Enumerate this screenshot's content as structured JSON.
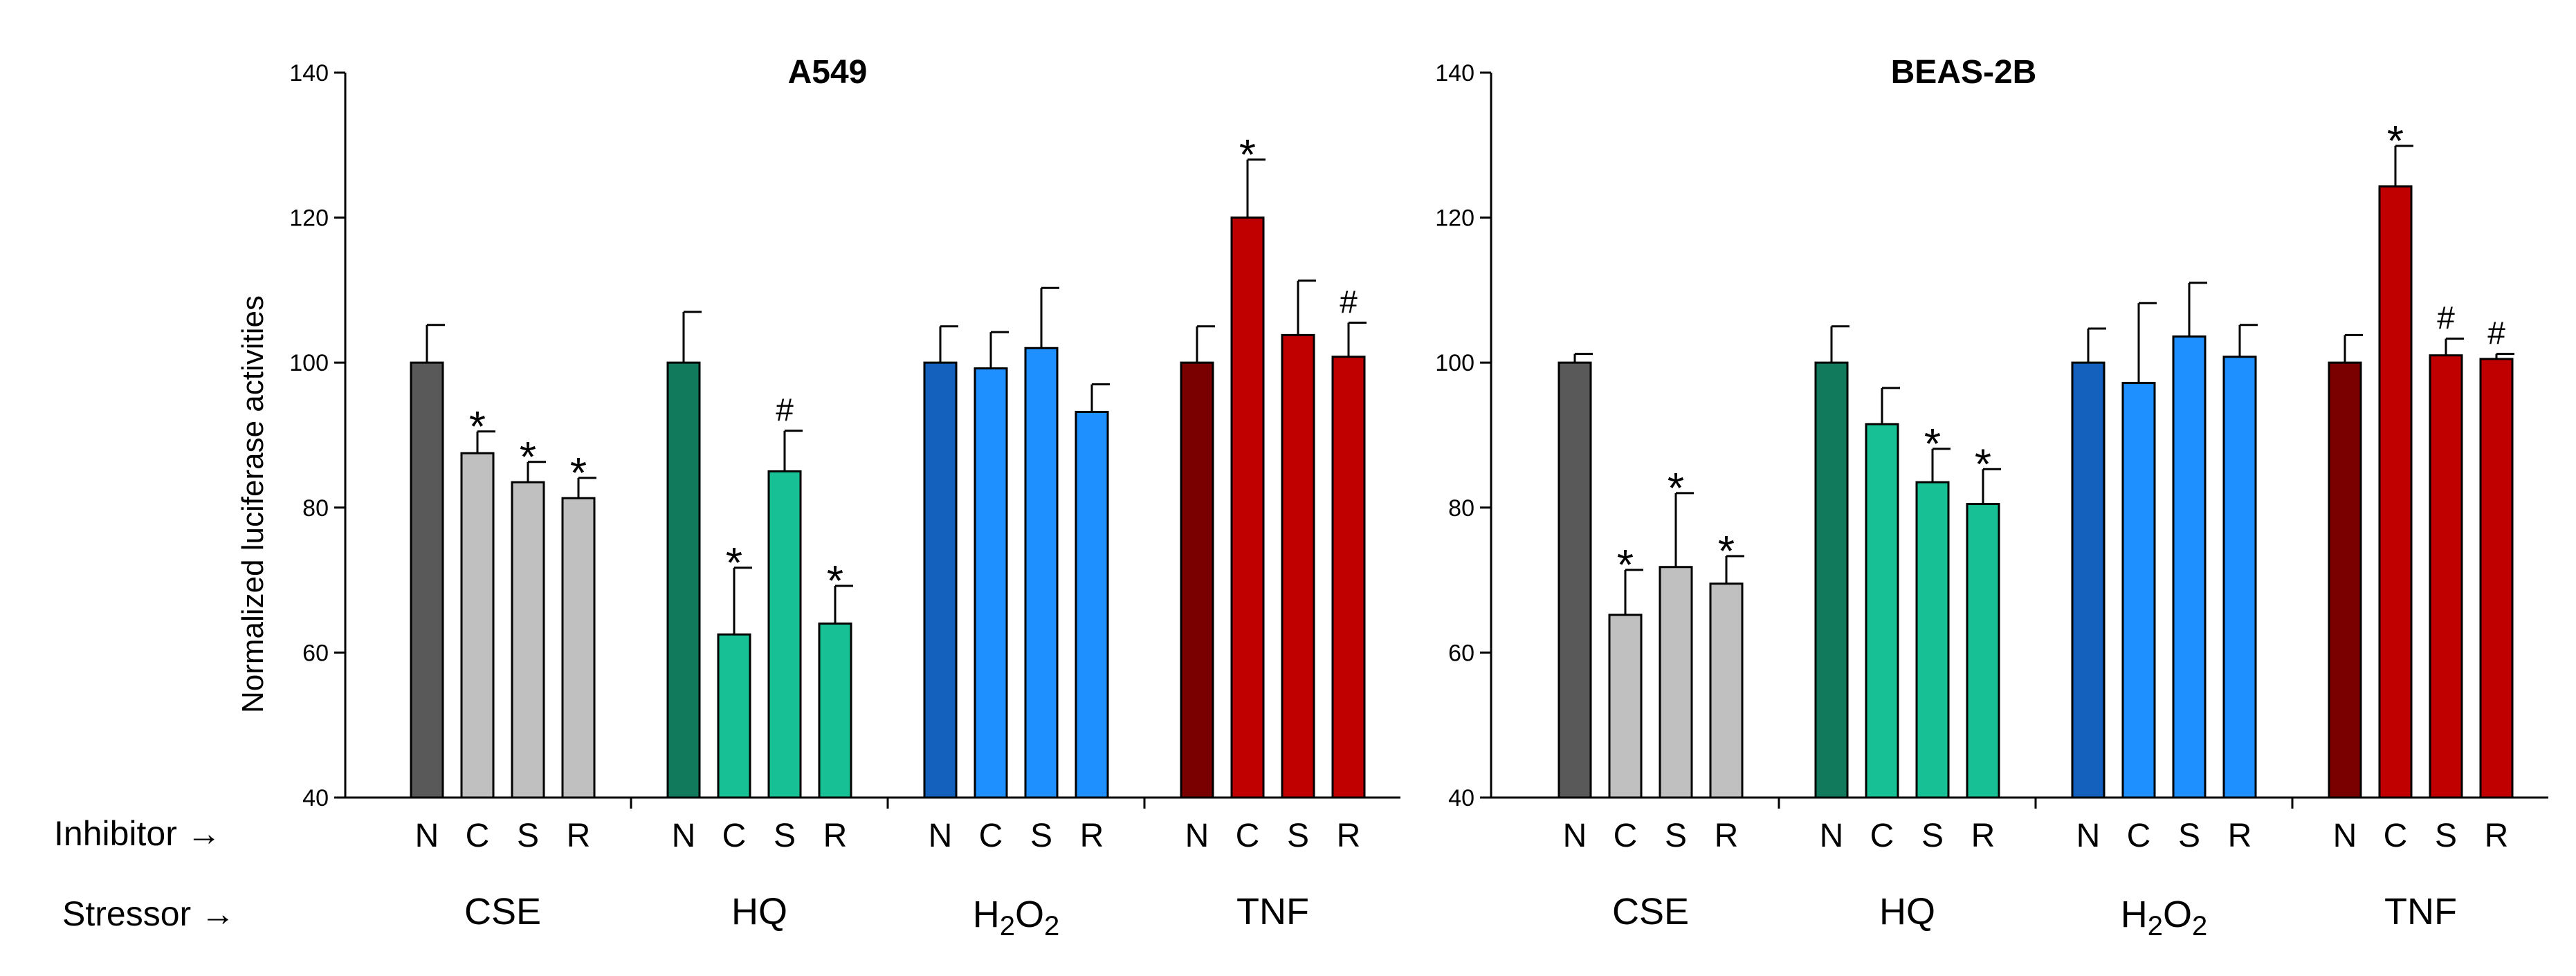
{
  "row_labels": {
    "inhibitor": "Inhibitor →",
    "stressor": "Stressor →"
  },
  "chart_data": [
    {
      "type": "bar",
      "title": "A549",
      "ylabel": "Normalized luciferase activities",
      "xlabel": "",
      "ylim": [
        40,
        140
      ],
      "yticks": [
        40,
        60,
        80,
        100,
        120,
        140
      ],
      "grid": false,
      "groups": [
        {
          "stressor": "CSE",
          "bars": [
            {
              "inhibitor": "N",
              "value": 100.0,
              "error": 5.2,
              "mark": "",
              "color": "#595959"
            },
            {
              "inhibitor": "C",
              "value": 87.5,
              "error": 3.0,
              "mark": "*",
              "color": "#c0c0c0"
            },
            {
              "inhibitor": "S",
              "value": 83.5,
              "error": 2.8,
              "mark": "*",
              "color": "#c0c0c0"
            },
            {
              "inhibitor": "R",
              "value": 81.3,
              "error": 2.8,
              "mark": "*",
              "color": "#c0c0c0"
            }
          ]
        },
        {
          "stressor": "HQ",
          "bars": [
            {
              "inhibitor": "N",
              "value": 100.0,
              "error": 7.0,
              "mark": "",
              "color": "#127a5c"
            },
            {
              "inhibitor": "C",
              "value": 62.5,
              "error": 9.2,
              "mark": "*",
              "color": "#17c195"
            },
            {
              "inhibitor": "S",
              "value": 85.0,
              "error": 5.6,
              "mark": "#",
              "color": "#17c195"
            },
            {
              "inhibitor": "R",
              "value": 64.0,
              "error": 5.2,
              "mark": "*",
              "color": "#17c195"
            }
          ]
        },
        {
          "stressor": "H2O2",
          "stressor_base": "H",
          "stressor_sub1": "2",
          "stressor_mid": "O",
          "stressor_sub2": "2",
          "bars": [
            {
              "inhibitor": "N",
              "value": 100.0,
              "error": 5.0,
              "mark": "",
              "color": "#1361bd"
            },
            {
              "inhibitor": "C",
              "value": 99.2,
              "error": 5.0,
              "mark": "",
              "color": "#1e90ff"
            },
            {
              "inhibitor": "S",
              "value": 102.0,
              "error": 8.3,
              "mark": "",
              "color": "#1e90ff"
            },
            {
              "inhibitor": "R",
              "value": 93.2,
              "error": 3.8,
              "mark": "",
              "color": "#1e90ff"
            }
          ]
        },
        {
          "stressor": "TNF",
          "bars": [
            {
              "inhibitor": "N",
              "value": 100.0,
              "error": 5.0,
              "mark": "",
              "color": "#7a0000"
            },
            {
              "inhibitor": "C",
              "value": 120.0,
              "error": 8.0,
              "mark": "*",
              "color": "#c00000"
            },
            {
              "inhibitor": "S",
              "value": 103.8,
              "error": 7.5,
              "mark": "",
              "color": "#c00000"
            },
            {
              "inhibitor": "R",
              "value": 100.8,
              "error": 4.7,
              "mark": "#",
              "color": "#c00000"
            }
          ]
        }
      ]
    },
    {
      "type": "bar",
      "title": "BEAS-2B",
      "ylabel": "",
      "xlabel": "",
      "ylim": [
        40,
        140
      ],
      "yticks": [
        40,
        60,
        80,
        100,
        120,
        140
      ],
      "grid": false,
      "groups": [
        {
          "stressor": "CSE",
          "bars": [
            {
              "inhibitor": "N",
              "value": 100.0,
              "error": 1.2,
              "mark": "",
              "color": "#595959"
            },
            {
              "inhibitor": "C",
              "value": 65.2,
              "error": 6.2,
              "mark": "*",
              "color": "#c0c0c0"
            },
            {
              "inhibitor": "S",
              "value": 71.8,
              "error": 10.2,
              "mark": "*",
              "color": "#c0c0c0"
            },
            {
              "inhibitor": "R",
              "value": 69.5,
              "error": 3.8,
              "mark": "*",
              "color": "#c0c0c0"
            }
          ]
        },
        {
          "stressor": "HQ",
          "bars": [
            {
              "inhibitor": "N",
              "value": 100.0,
              "error": 5.0,
              "mark": "",
              "color": "#127a5c"
            },
            {
              "inhibitor": "C",
              "value": 91.5,
              "error": 5.0,
              "mark": "",
              "color": "#17c195"
            },
            {
              "inhibitor": "S",
              "value": 83.5,
              "error": 4.6,
              "mark": "*",
              "color": "#17c195"
            },
            {
              "inhibitor": "R",
              "value": 80.5,
              "error": 4.8,
              "mark": "*",
              "color": "#17c195"
            }
          ]
        },
        {
          "stressor": "H2O2",
          "stressor_base": "H",
          "stressor_sub1": "2",
          "stressor_mid": "O",
          "stressor_sub2": "2",
          "bars": [
            {
              "inhibitor": "N",
              "value": 100.0,
              "error": 4.7,
              "mark": "",
              "color": "#1361bd"
            },
            {
              "inhibitor": "C",
              "value": 97.2,
              "error": 11.0,
              "mark": "",
              "color": "#1e90ff"
            },
            {
              "inhibitor": "S",
              "value": 103.6,
              "error": 7.4,
              "mark": "",
              "color": "#1e90ff"
            },
            {
              "inhibitor": "R",
              "value": 100.8,
              "error": 4.4,
              "mark": "",
              "color": "#1e90ff"
            }
          ]
        },
        {
          "stressor": "TNF",
          "bars": [
            {
              "inhibitor": "N",
              "value": 100.0,
              "error": 3.8,
              "mark": "",
              "color": "#7a0000"
            },
            {
              "inhibitor": "C",
              "value": 124.3,
              "error": 5.6,
              "mark": "*",
              "color": "#c00000"
            },
            {
              "inhibitor": "S",
              "value": 101.0,
              "error": 2.3,
              "mark": "#",
              "color": "#c00000"
            },
            {
              "inhibitor": "R",
              "value": 100.5,
              "error": 0.7,
              "mark": "#",
              "color": "#c00000"
            }
          ]
        }
      ]
    }
  ]
}
